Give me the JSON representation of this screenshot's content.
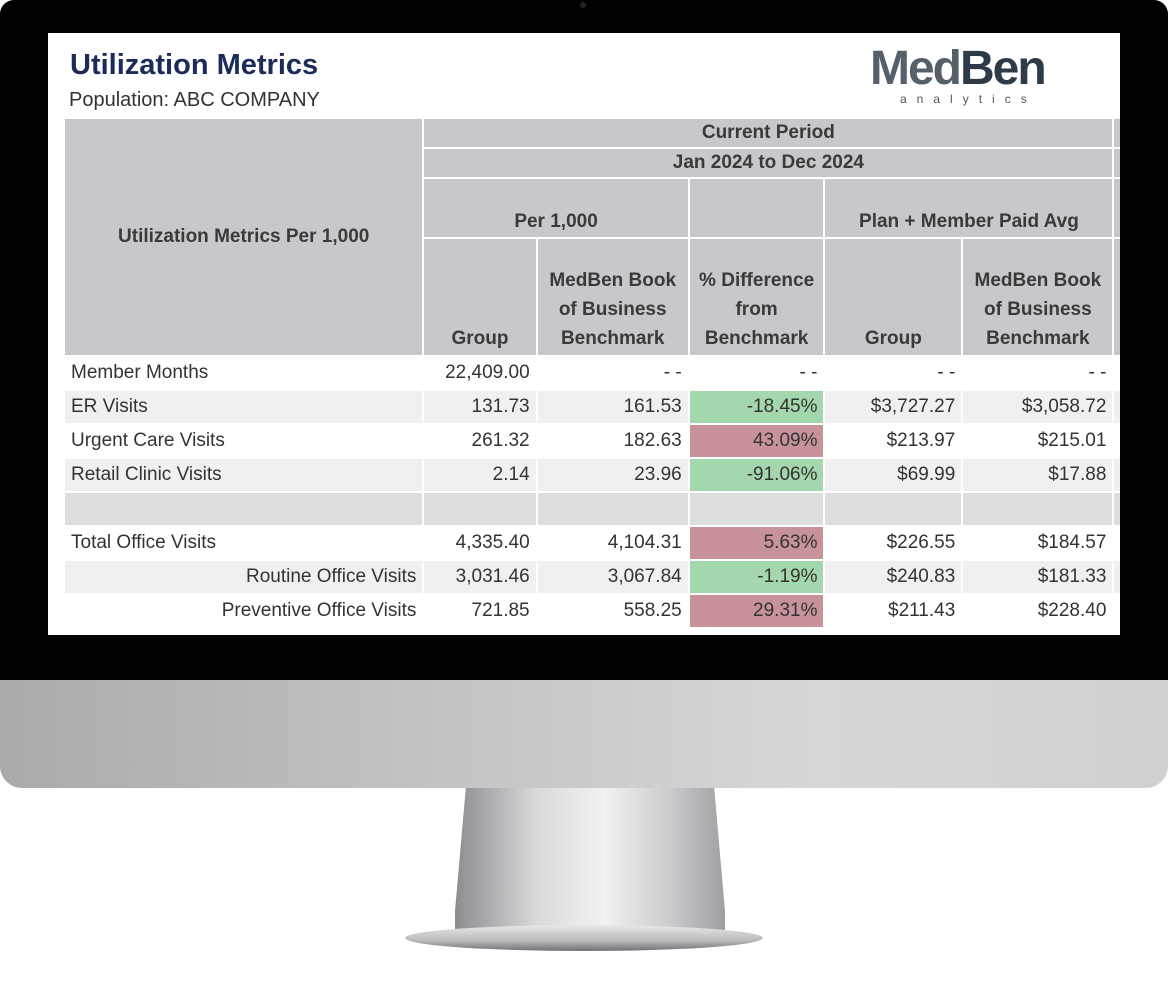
{
  "header": {
    "title": "Utilization Metrics",
    "population": "Population: ABC COMPANY"
  },
  "logo": {
    "name_part1": "Med",
    "name_part2": "Ben",
    "tagline": "analytics"
  },
  "colors": {
    "title": "#1c2b57",
    "header_bg": "#c6c8cb",
    "better": "#a5d7ae",
    "worse": "#c8929a"
  },
  "table": {
    "row_header": "Utilization Metrics Per 1,000",
    "period_label": "Current Period",
    "period_range": "Jan 2024 to Dec 2024",
    "group_per1000": "Per 1,000",
    "group_paid": "Plan + Member Paid Avg",
    "columns": [
      "Group",
      "MedBen Book of Business Benchmark",
      "% Difference from Benchmark",
      "Group",
      "MedBen Book of Business Benchmark"
    ],
    "rows": [
      {
        "label": "Member Months",
        "group": "22,409.00",
        "bench": "- -",
        "diff": "- -",
        "status": "none",
        "paid_group": "- -",
        "paid_bench": "- -"
      },
      {
        "label": "ER Visits",
        "group": "131.73",
        "bench": "161.53",
        "diff": "-18.45%",
        "status": "good",
        "paid_group": "$3,727.27",
        "paid_bench": "$3,058.72"
      },
      {
        "label": "Urgent Care Visits",
        "group": "261.32",
        "bench": "182.63",
        "diff": "43.09%",
        "status": "bad",
        "paid_group": "$213.97",
        "paid_bench": "$215.01"
      },
      {
        "label": "Retail Clinic Visits",
        "group": "2.14",
        "bench": "23.96",
        "diff": "-91.06%",
        "status": "good",
        "paid_group": "$69.99",
        "paid_bench": "$17.88"
      },
      {
        "label": "Total Office Visits",
        "group": "4,335.40",
        "bench": "4,104.31",
        "diff": "5.63%",
        "status": "bad",
        "paid_group": "$226.55",
        "paid_bench": "$184.57"
      },
      {
        "label": "Routine Office Visits",
        "group": "3,031.46",
        "bench": "3,067.84",
        "diff": "-1.19%",
        "status": "good",
        "paid_group": "$240.83",
        "paid_bench": "$181.33"
      },
      {
        "label": "Preventive Office Visits",
        "group": "721.85",
        "bench": "558.25",
        "diff": "29.31%",
        "status": "bad",
        "paid_group": "$211.43",
        "paid_bench": "$228.40"
      }
    ]
  }
}
